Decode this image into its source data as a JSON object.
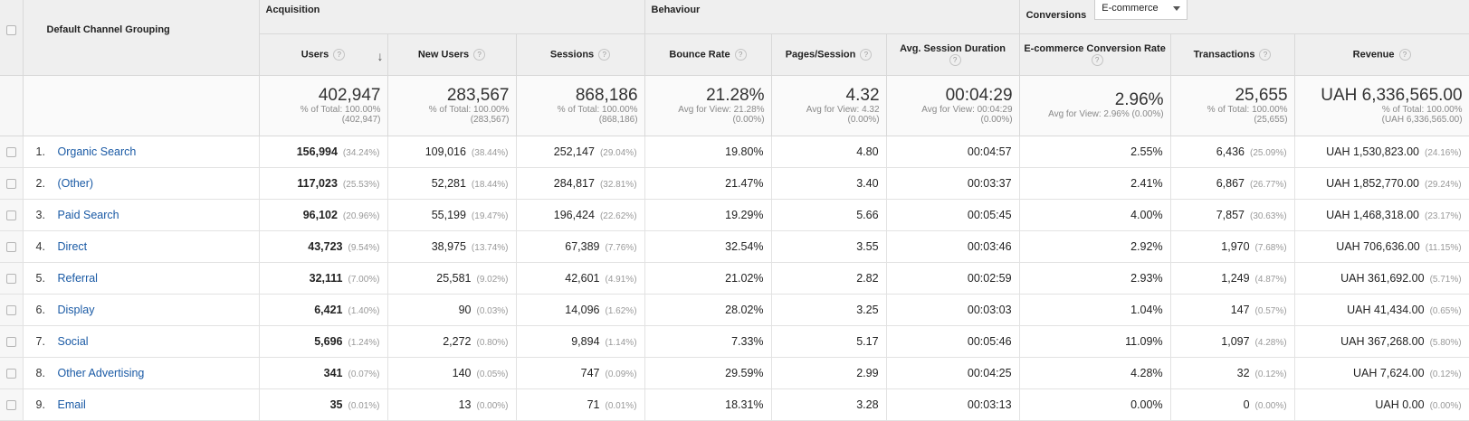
{
  "groups": {
    "acquisition": "Acquisition",
    "behaviour": "Behaviour",
    "conversions": "Conversions",
    "conversions_select": "E-commerce"
  },
  "columns": {
    "dimension": "Default Channel Grouping",
    "users": "Users",
    "new_users": "New Users",
    "sessions": "Sessions",
    "bounce_rate": "Bounce Rate",
    "pages_session": "Pages/Session",
    "avg_session_duration": "Avg. Session Duration",
    "ecom_conversion_rate": "E-commerce Conversion Rate",
    "transactions": "Transactions",
    "revenue": "Revenue"
  },
  "help_glyph": "?",
  "sort_glyph": "↓",
  "totals": {
    "users": {
      "big": "402,947",
      "l1": "% of Total: 100.00%",
      "l2": "(402,947)"
    },
    "new_users": {
      "big": "283,567",
      "l1": "% of Total: 100.00%",
      "l2": "(283,567)"
    },
    "sessions": {
      "big": "868,186",
      "l1": "% of Total: 100.00%",
      "l2": "(868,186)"
    },
    "bounce_rate": {
      "big": "21.28%",
      "l1": "Avg for View: 21.28%",
      "l2": "(0.00%)"
    },
    "pages_session": {
      "big": "4.32",
      "l1": "Avg for View: 4.32",
      "l2": "(0.00%)"
    },
    "avg_session_duration": {
      "big": "00:04:29",
      "l1": "Avg for View: 00:04:29",
      "l2": "(0.00%)"
    },
    "ecom_conversion_rate": {
      "big": "2.96%",
      "l1": "Avg for View: 2.96% (0.00%)",
      "l2": ""
    },
    "transactions": {
      "big": "25,655",
      "l1": "% of Total: 100.00%",
      "l2": "(25,655)"
    },
    "revenue": {
      "big": "UAH 6,336,565.00",
      "l1": "% of Total: 100.00%",
      "l2": "(UAH 6,336,565.00)"
    }
  },
  "rows": [
    {
      "n": "1.",
      "channel": "Organic Search",
      "users": "156,994",
      "users_pct": "(34.24%)",
      "new_users": "109,016",
      "new_users_pct": "(38.44%)",
      "sessions": "252,147",
      "sessions_pct": "(29.04%)",
      "bounce": "19.80%",
      "pps": "4.80",
      "dur": "00:04:57",
      "conv": "2.55%",
      "trans": "6,436",
      "trans_pct": "(25.09%)",
      "rev": "UAH 1,530,823.00",
      "rev_pct": "(24.16%)"
    },
    {
      "n": "2.",
      "channel": "(Other)",
      "users": "117,023",
      "users_pct": "(25.53%)",
      "new_users": "52,281",
      "new_users_pct": "(18.44%)",
      "sessions": "284,817",
      "sessions_pct": "(32.81%)",
      "bounce": "21.47%",
      "pps": "3.40",
      "dur": "00:03:37",
      "conv": "2.41%",
      "trans": "6,867",
      "trans_pct": "(26.77%)",
      "rev": "UAH 1,852,770.00",
      "rev_pct": "(29.24%)"
    },
    {
      "n": "3.",
      "channel": "Paid Search",
      "users": "96,102",
      "users_pct": "(20.96%)",
      "new_users": "55,199",
      "new_users_pct": "(19.47%)",
      "sessions": "196,424",
      "sessions_pct": "(22.62%)",
      "bounce": "19.29%",
      "pps": "5.66",
      "dur": "00:05:45",
      "conv": "4.00%",
      "trans": "7,857",
      "trans_pct": "(30.63%)",
      "rev": "UAH 1,468,318.00",
      "rev_pct": "(23.17%)"
    },
    {
      "n": "4.",
      "channel": "Direct",
      "users": "43,723",
      "users_pct": "(9.54%)",
      "new_users": "38,975",
      "new_users_pct": "(13.74%)",
      "sessions": "67,389",
      "sessions_pct": "(7.76%)",
      "bounce": "32.54%",
      "pps": "3.55",
      "dur": "00:03:46",
      "conv": "2.92%",
      "trans": "1,970",
      "trans_pct": "(7.68%)",
      "rev": "UAH 706,636.00",
      "rev_pct": "(11.15%)"
    },
    {
      "n": "5.",
      "channel": "Referral",
      "users": "32,111",
      "users_pct": "(7.00%)",
      "new_users": "25,581",
      "new_users_pct": "(9.02%)",
      "sessions": "42,601",
      "sessions_pct": "(4.91%)",
      "bounce": "21.02%",
      "pps": "2.82",
      "dur": "00:02:59",
      "conv": "2.93%",
      "trans": "1,249",
      "trans_pct": "(4.87%)",
      "rev": "UAH 361,692.00",
      "rev_pct": "(5.71%)"
    },
    {
      "n": "6.",
      "channel": "Display",
      "users": "6,421",
      "users_pct": "(1.40%)",
      "new_users": "90",
      "new_users_pct": "(0.03%)",
      "sessions": "14,096",
      "sessions_pct": "(1.62%)",
      "bounce": "28.02%",
      "pps": "3.25",
      "dur": "00:03:03",
      "conv": "1.04%",
      "trans": "147",
      "trans_pct": "(0.57%)",
      "rev": "UAH 41,434.00",
      "rev_pct": "(0.65%)"
    },
    {
      "n": "7.",
      "channel": "Social",
      "users": "5,696",
      "users_pct": "(1.24%)",
      "new_users": "2,272",
      "new_users_pct": "(0.80%)",
      "sessions": "9,894",
      "sessions_pct": "(1.14%)",
      "bounce": "7.33%",
      "pps": "5.17",
      "dur": "00:05:46",
      "conv": "11.09%",
      "trans": "1,097",
      "trans_pct": "(4.28%)",
      "rev": "UAH 367,268.00",
      "rev_pct": "(5.80%)"
    },
    {
      "n": "8.",
      "channel": "Other Advertising",
      "users": "341",
      "users_pct": "(0.07%)",
      "new_users": "140",
      "new_users_pct": "(0.05%)",
      "sessions": "747",
      "sessions_pct": "(0.09%)",
      "bounce": "29.59%",
      "pps": "2.99",
      "dur": "00:04:25",
      "conv": "4.28%",
      "trans": "32",
      "trans_pct": "(0.12%)",
      "rev": "UAH 7,624.00",
      "rev_pct": "(0.12%)"
    },
    {
      "n": "9.",
      "channel": "Email",
      "users": "35",
      "users_pct": "(0.01%)",
      "new_users": "13",
      "new_users_pct": "(0.00%)",
      "sessions": "71",
      "sessions_pct": "(0.01%)",
      "bounce": "18.31%",
      "pps": "3.28",
      "dur": "00:03:13",
      "conv": "0.00%",
      "trans": "0",
      "trans_pct": "(0.00%)",
      "rev": "UAH 0.00",
      "rev_pct": "(0.00%)"
    }
  ]
}
